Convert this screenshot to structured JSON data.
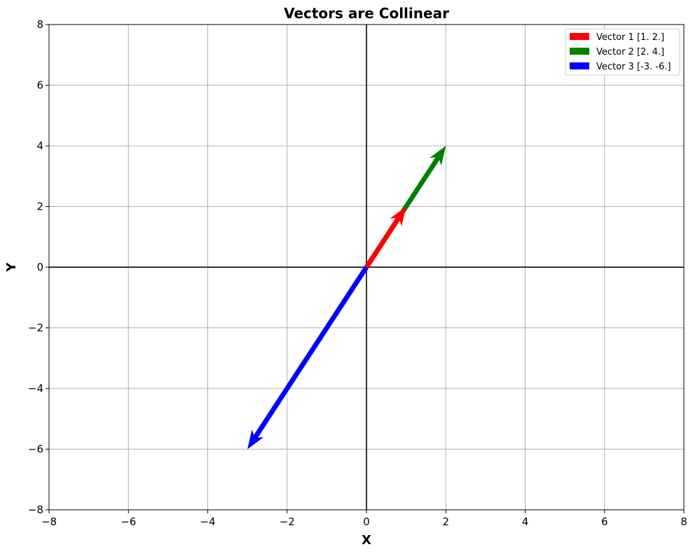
{
  "chart_data": {
    "type": "vector",
    "title": "Vectors are Collinear",
    "xlabel": "X",
    "ylabel": "Y",
    "xlim": [
      -8,
      8
    ],
    "ylim": [
      -8,
      8
    ],
    "xticks": [
      -8,
      -6,
      -4,
      -2,
      0,
      2,
      4,
      6,
      8
    ],
    "yticks": [
      -8,
      -6,
      -4,
      -2,
      0,
      2,
      4,
      6,
      8
    ],
    "grid": true,
    "legend_position": "top-right",
    "series": [
      {
        "name": "Vector 1 [1. 2.]",
        "x": 1,
        "y": 2,
        "color": "#ff0000"
      },
      {
        "name": "Vector 2 [2. 4.]",
        "x": 2,
        "y": 4,
        "color": "#008000"
      },
      {
        "name": "Vector 3 [-3. -6.]",
        "x": -3,
        "y": -6,
        "color": "#0000ff"
      }
    ]
  }
}
